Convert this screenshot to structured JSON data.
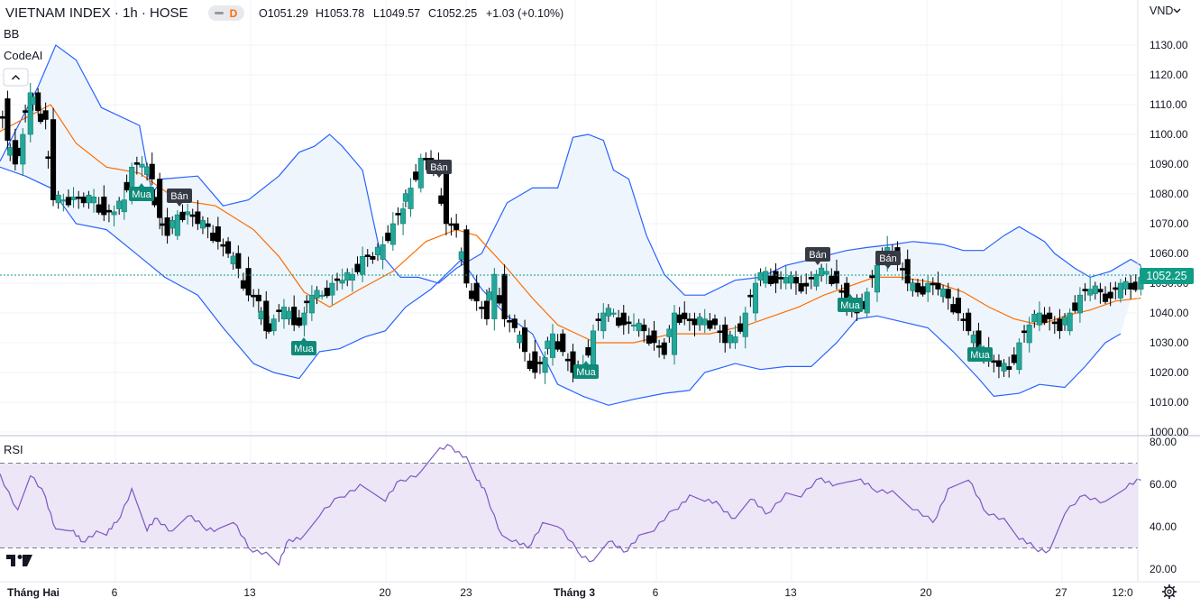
{
  "header": {
    "title": "VIETNAM INDEX · 1h · HOSE",
    "badge": "D",
    "open": "O1051.29",
    "high": "H1053.78",
    "low": "L1049.57",
    "close": "C1052.25",
    "change": "+1.03 (+0.10%)",
    "currency": "VND"
  },
  "indicators": {
    "bb": "BB",
    "codeai": "CodeAI",
    "rsi": "RSI",
    "collapse_icon": "chevron-up-icon"
  },
  "price_axis": {
    "ticks": [
      "1130.00",
      "1120.00",
      "1110.00",
      "1100.00",
      "1090.00",
      "1080.00",
      "1070.00",
      "1060.00",
      "1050.00",
      "1040.00",
      "1030.00",
      "1020.00",
      "1010.00",
      "1000.00"
    ],
    "last_price": "1052.25"
  },
  "rsi_axis": {
    "ticks": [
      "80.00",
      "60.00",
      "40.00",
      "20.00"
    ]
  },
  "time_axis": {
    "labels": [
      "Tháng Hai",
      "6",
      "13",
      "20",
      "23",
      "Tháng 3",
      "6",
      "13",
      "20",
      "27",
      "12:0"
    ]
  },
  "colors": {
    "up": "#26a69a",
    "up_dark": "#0f7f6e",
    "down": "#000000",
    "bb_band": "#2962ff",
    "bb_basis": "#ff6d00",
    "bb_fill": "#eef5fc",
    "rsi_line": "#7e57c2",
    "rsi_fill": "#ece6f7",
    "buy_pill": "#0f8a78",
    "sell_pill": "#363a45",
    "last_price": "#0f9d85"
  },
  "chart_data": [
    {
      "type": "candlestick",
      "title": "VIETNAM INDEX · 1h · HOSE",
      "ylim": [
        1000,
        1133
      ],
      "bb_upper": [
        [
          0,
          1091
        ],
        [
          0.15,
          1116
        ],
        [
          0.22,
          1130
        ],
        [
          0.3,
          1125
        ],
        [
          0.4,
          1109
        ],
        [
          0.55,
          1103
        ],
        [
          0.6,
          1080
        ],
        [
          0.64,
          1085
        ],
        [
          0.78,
          1086
        ],
        [
          0.88,
          1076
        ],
        [
          0.98,
          1078
        ],
        [
          1.1,
          1086
        ],
        [
          1.18,
          1094
        ],
        [
          1.24,
          1096
        ],
        [
          1.3,
          1100
        ],
        [
          1.35,
          1096
        ],
        [
          1.43,
          1088
        ],
        [
          1.5,
          1060
        ],
        [
          1.58,
          1052
        ],
        [
          1.65,
          1052
        ],
        [
          1.73,
          1050
        ],
        [
          1.8,
          1055
        ],
        [
          1.9,
          1060
        ],
        [
          2.0,
          1077
        ],
        [
          2.1,
          1082
        ],
        [
          2.2,
          1082
        ],
        [
          2.26,
          1099
        ],
        [
          2.32,
          1100
        ],
        [
          2.38,
          1098
        ],
        [
          2.42,
          1088
        ],
        [
          2.48,
          1085
        ],
        [
          2.55,
          1066
        ],
        [
          2.62,
          1053
        ],
        [
          2.7,
          1046
        ],
        [
          2.78,
          1046
        ],
        [
          2.9,
          1051
        ],
        [
          3.0,
          1052
        ],
        [
          3.1,
          1056
        ],
        [
          3.2,
          1058
        ],
        [
          3.34,
          1061
        ],
        [
          3.42,
          1062
        ],
        [
          3.52,
          1063
        ],
        [
          3.6,
          1064
        ],
        [
          3.72,
          1063
        ],
        [
          3.8,
          1061
        ],
        [
          3.88,
          1061
        ],
        [
          3.96,
          1066
        ],
        [
          4.02,
          1069
        ],
        [
          4.08,
          1066
        ],
        [
          4.12,
          1064
        ],
        [
          4.16,
          1060
        ],
        [
          4.24,
          1055
        ],
        [
          4.3,
          1052
        ],
        [
          4.38,
          1054
        ],
        [
          4.46,
          1058
        ],
        [
          4.5,
          1056
        ]
      ],
      "bb_basis": [
        [
          0,
          1101
        ],
        [
          0.2,
          1110
        ],
        [
          0.3,
          1097
        ],
        [
          0.42,
          1089
        ],
        [
          0.55,
          1087
        ],
        [
          0.7,
          1078
        ],
        [
          0.85,
          1076
        ],
        [
          1.0,
          1068
        ],
        [
          1.1,
          1059
        ],
        [
          1.2,
          1047
        ],
        [
          1.3,
          1042
        ],
        [
          1.42,
          1048
        ],
        [
          1.55,
          1054
        ],
        [
          1.68,
          1064
        ],
        [
          1.8,
          1068
        ],
        [
          1.88,
          1066
        ],
        [
          2.0,
          1055
        ],
        [
          2.1,
          1045
        ],
        [
          2.2,
          1036
        ],
        [
          2.35,
          1030
        ],
        [
          2.5,
          1030
        ],
        [
          2.65,
          1033
        ],
        [
          2.8,
          1033
        ],
        [
          2.95,
          1036
        ],
        [
          3.05,
          1039
        ],
        [
          3.15,
          1042
        ],
        [
          3.25,
          1046
        ],
        [
          3.35,
          1049
        ],
        [
          3.45,
          1052
        ],
        [
          3.55,
          1052
        ],
        [
          3.7,
          1050
        ],
        [
          3.8,
          1047
        ],
        [
          3.9,
          1042
        ],
        [
          4.0,
          1038
        ],
        [
          4.1,
          1036
        ],
        [
          4.2,
          1039
        ],
        [
          4.3,
          1041
        ],
        [
          4.4,
          1044
        ],
        [
          4.5,
          1045
        ]
      ],
      "bb_lower": [
        [
          0,
          1089
        ],
        [
          0.1,
          1086
        ],
        [
          0.2,
          1082
        ],
        [
          0.3,
          1070
        ],
        [
          0.42,
          1068
        ],
        [
          0.55,
          1059
        ],
        [
          0.65,
          1052
        ],
        [
          0.78,
          1046
        ],
        [
          0.88,
          1035
        ],
        [
          1.0,
          1023
        ],
        [
          1.08,
          1020
        ],
        [
          1.18,
          1018
        ],
        [
          1.26,
          1027
        ],
        [
          1.34,
          1028
        ],
        [
          1.44,
          1032
        ],
        [
          1.52,
          1034
        ],
        [
          1.6,
          1042
        ],
        [
          1.7,
          1048
        ],
        [
          1.82,
          1058
        ],
        [
          1.9,
          1048
        ],
        [
          2.0,
          1039
        ],
        [
          2.1,
          1033
        ],
        [
          2.2,
          1016
        ],
        [
          2.3,
          1012
        ],
        [
          2.4,
          1009
        ],
        [
          2.5,
          1011
        ],
        [
          2.62,
          1013
        ],
        [
          2.72,
          1014
        ],
        [
          2.78,
          1020
        ],
        [
          2.9,
          1023
        ],
        [
          3.0,
          1021
        ],
        [
          3.1,
          1022
        ],
        [
          3.2,
          1022
        ],
        [
          3.3,
          1030
        ],
        [
          3.38,
          1038
        ],
        [
          3.46,
          1039
        ],
        [
          3.56,
          1037
        ],
        [
          3.66,
          1035
        ],
        [
          3.76,
          1027
        ],
        [
          3.86,
          1018
        ],
        [
          3.92,
          1012
        ],
        [
          4.02,
          1013
        ],
        [
          4.1,
          1016
        ],
        [
          4.2,
          1015
        ],
        [
          4.28,
          1022
        ],
        [
          4.36,
          1030
        ],
        [
          4.42,
          1033
        ]
      ],
      "rsi": [
        [
          0,
          65
        ],
        [
          0.07,
          48
        ],
        [
          0.12,
          64
        ],
        [
          0.18,
          54
        ],
        [
          0.22,
          39
        ],
        [
          0.28,
          38
        ],
        [
          0.32,
          33
        ],
        [
          0.38,
          38
        ],
        [
          0.42,
          36
        ],
        [
          0.46,
          42
        ],
        [
          0.52,
          58
        ],
        [
          0.58,
          38
        ],
        [
          0.62,
          44
        ],
        [
          0.68,
          38
        ],
        [
          0.74,
          45
        ],
        [
          0.8,
          40
        ],
        [
          0.86,
          39
        ],
        [
          0.92,
          42
        ],
        [
          0.98,
          30
        ],
        [
          1.05,
          28
        ],
        [
          1.1,
          22
        ],
        [
          1.14,
          34
        ],
        [
          1.2,
          36
        ],
        [
          1.26,
          45
        ],
        [
          1.34,
          54
        ],
        [
          1.42,
          60
        ],
        [
          1.52,
          52
        ],
        [
          1.58,
          62
        ],
        [
          1.66,
          66
        ],
        [
          1.72,
          75
        ],
        [
          1.78,
          78
        ],
        [
          1.84,
          73
        ],
        [
          1.88,
          62
        ],
        [
          1.92,
          55
        ],
        [
          1.98,
          36
        ],
        [
          2.02,
          33
        ],
        [
          2.08,
          30
        ],
        [
          2.14,
          42
        ],
        [
          2.2,
          40
        ],
        [
          2.28,
          28
        ],
        [
          2.34,
          24
        ],
        [
          2.4,
          33
        ],
        [
          2.46,
          28
        ],
        [
          2.52,
          36
        ],
        [
          2.58,
          38
        ],
        [
          2.66,
          48
        ],
        [
          2.72,
          55
        ],
        [
          2.78,
          52
        ],
        [
          2.84,
          50
        ],
        [
          2.9,
          44
        ],
        [
          2.96,
          53
        ],
        [
          3.02,
          46
        ],
        [
          3.1,
          56
        ],
        [
          3.16,
          54
        ],
        [
          3.24,
          63
        ],
        [
          3.3,
          60
        ],
        [
          3.38,
          62
        ],
        [
          3.44,
          58
        ],
        [
          3.52,
          57
        ],
        [
          3.6,
          48
        ],
        [
          3.68,
          42
        ],
        [
          3.74,
          58
        ],
        [
          3.82,
          62
        ],
        [
          3.88,
          48
        ],
        [
          3.96,
          44
        ],
        [
          4.02,
          34
        ],
        [
          4.08,
          30
        ],
        [
          4.14,
          29
        ],
        [
          4.2,
          46
        ],
        [
          4.28,
          55
        ],
        [
          4.36,
          52
        ],
        [
          4.44,
          58
        ],
        [
          4.5,
          62
        ]
      ],
      "candles_note": "OHLC approximated from chart"
    }
  ]
}
